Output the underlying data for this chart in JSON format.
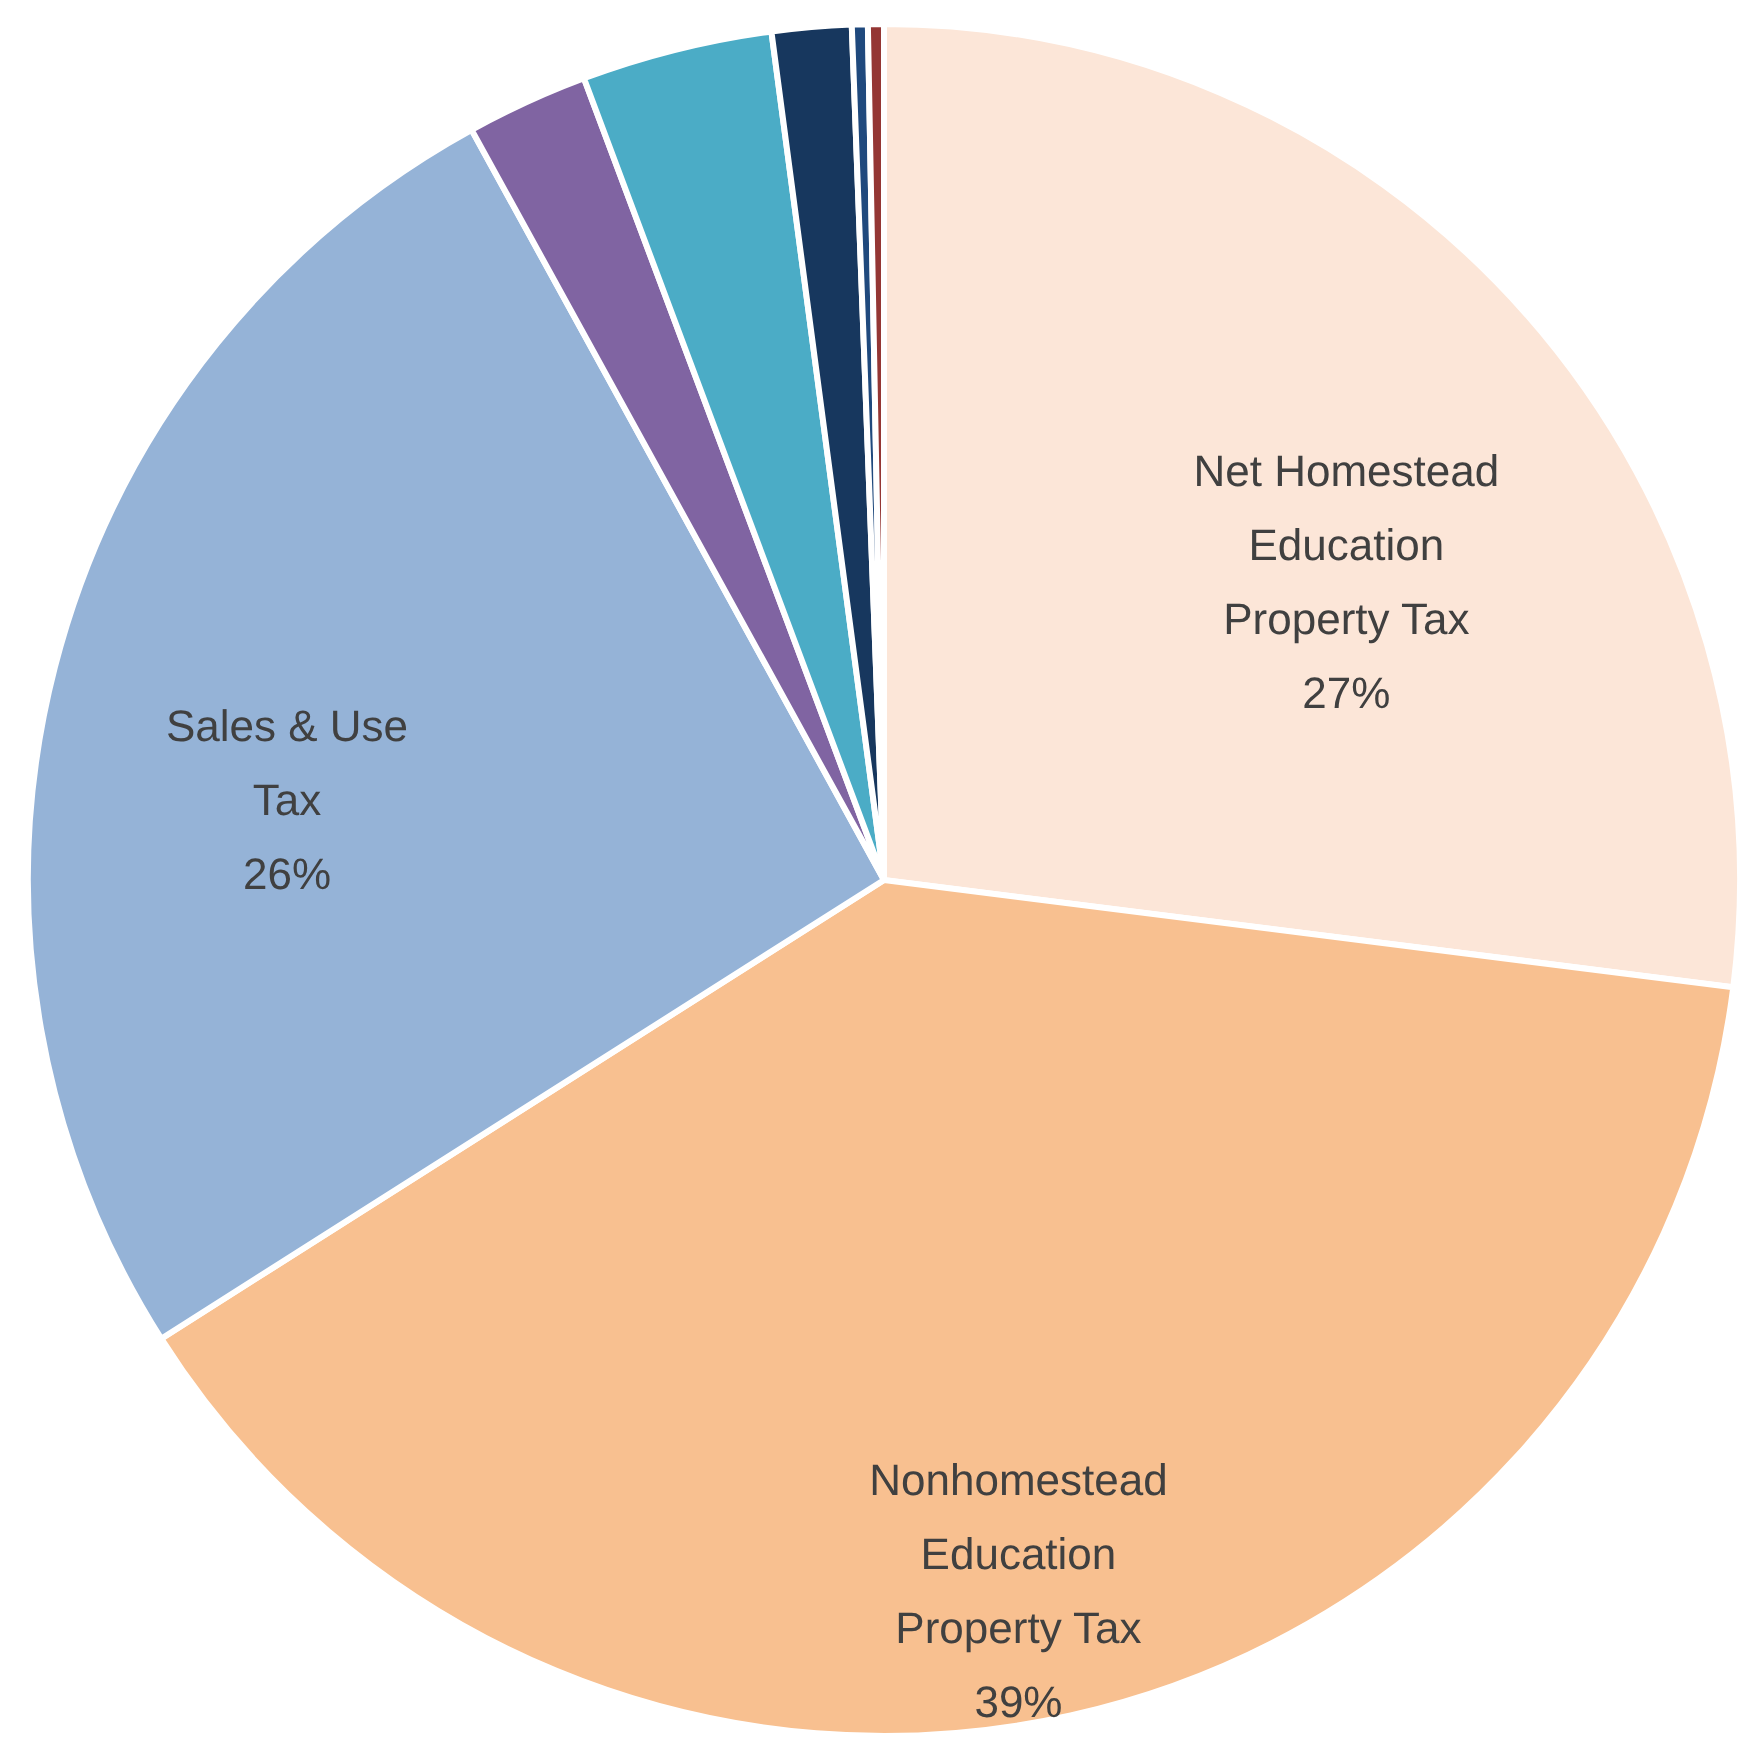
{
  "chart_data": {
    "type": "pie",
    "categories": [
      "Net Homestead Education Property Tax",
      "Nonhomestead Education Property Tax",
      "Sales & Use Tax",
      null,
      null,
      null,
      null,
      null
    ],
    "values": [
      27,
      39,
      26,
      2.3,
      3.6,
      1.5,
      0.3,
      0.3
    ],
    "value_labels": [
      "27%",
      "39%",
      "26%",
      null,
      null,
      null,
      null,
      null
    ],
    "colors": [
      "#fce6d8",
      "#f8c090",
      "#95b3d7",
      "#8064a2",
      "#4bacc6",
      "#17375e",
      "#1f497d",
      "#943634"
    ],
    "legend": false
  }
}
